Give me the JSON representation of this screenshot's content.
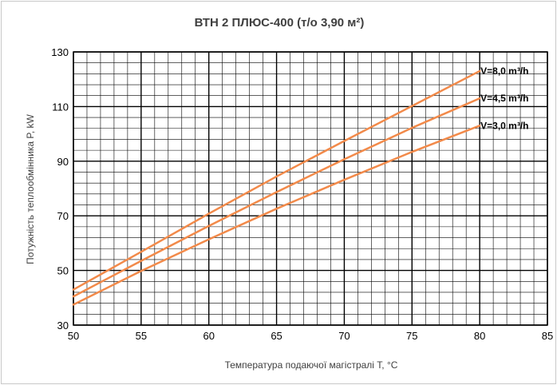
{
  "chart_data": {
    "type": "line",
    "title": "ВТН 2 ПЛЮС-400 (т/о 3,90 м²)",
    "xlabel": "Температура подаючої магістралі T, °C",
    "ylabel": "Потужність теплообмінника P, kW",
    "xlim": [
      50,
      85
    ],
    "ylim": [
      30,
      130
    ],
    "x_ticks": [
      50,
      55,
      60,
      65,
      70,
      75,
      80,
      85
    ],
    "y_ticks": [
      30,
      50,
      70,
      90,
      110,
      130
    ],
    "x_minor_step": 1,
    "y_minor_step": 4,
    "grid": true,
    "line_color": "#f28a4a",
    "series": [
      {
        "name": "V=8,0 m³/h",
        "x": [
          50,
          55,
          60,
          65,
          70,
          75,
          80
        ],
        "y": [
          43,
          56.8,
          70.8,
          84.4,
          97.4,
          110.2,
          123
        ]
      },
      {
        "name": "V=4,5 m³/h",
        "x": [
          50,
          55,
          60,
          65,
          70,
          75,
          80
        ],
        "y": [
          40.5,
          53.5,
          66.3,
          78.7,
          90.7,
          102.2,
          113
        ]
      },
      {
        "name": "V=3,0 m³/h",
        "x": [
          50,
          55,
          60,
          65,
          70,
          75,
          80
        ],
        "y": [
          37.5,
          49.8,
          61.4,
          72.6,
          83.2,
          93.4,
          103
        ]
      }
    ]
  }
}
